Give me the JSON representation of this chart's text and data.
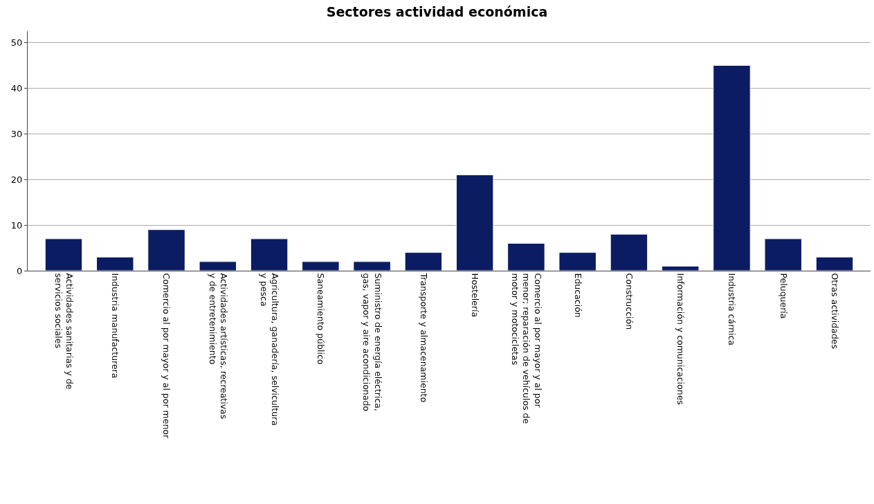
{
  "chart_data": {
    "type": "bar",
    "title": "Sectores actividad económica",
    "categories": [
      "Actividades sanitarias y de servicios sociales",
      "Industria manufacturera",
      "Comercio al por mayor y al por menor",
      "Actividades artísticas, recreativas y de entretenimiento",
      "Agricultura, ganadería, selvicultura y pesca",
      "Saneamiento público",
      "Suministro de energía eléctrica, gas, vapor y aire acondicionado",
      "Transporte y almacenamiento",
      "Hostelería",
      "Comercio al por mayor y al por menor; reparación de vehículos de motor y motocicletas",
      "Educación",
      "Construcción",
      "Información y comunicaciones",
      "Industria cárnica",
      "Peluquería",
      "Otras actividades"
    ],
    "values": [
      7,
      3,
      9,
      2,
      7,
      2,
      2,
      4,
      21,
      6,
      4,
      8,
      1,
      45,
      7,
      3
    ],
    "color": "#0b1c63",
    "ylim": [
      0,
      52.5
    ],
    "yticks": [
      0,
      10,
      20,
      30,
      40,
      50
    ],
    "grid": "y",
    "legend": false
  }
}
